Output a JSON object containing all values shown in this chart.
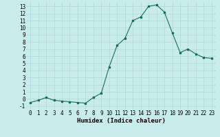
{
  "x": [
    0,
    1,
    2,
    3,
    4,
    5,
    6,
    7,
    8,
    9,
    10,
    11,
    12,
    13,
    14,
    15,
    16,
    17,
    18,
    19,
    20,
    21,
    22,
    23
  ],
  "y": [
    -0.5,
    -0.2,
    0.2,
    -0.2,
    -0.3,
    -0.4,
    -0.5,
    -0.6,
    0.2,
    0.8,
    4.5,
    7.5,
    8.5,
    11.0,
    11.5,
    13.0,
    13.2,
    12.2,
    9.3,
    6.5,
    7.0,
    6.3,
    5.8,
    5.7
  ],
  "xlabel": "Humidex (Indice chaleur)",
  "ylim": [
    -1.5,
    13.5
  ],
  "xlim": [
    -0.5,
    23.5
  ],
  "yticks": [
    -1,
    0,
    1,
    2,
    3,
    4,
    5,
    6,
    7,
    8,
    9,
    10,
    11,
    12,
    13
  ],
  "xticks": [
    0,
    1,
    2,
    3,
    4,
    5,
    6,
    7,
    8,
    9,
    10,
    11,
    12,
    13,
    14,
    15,
    16,
    17,
    18,
    19,
    20,
    21,
    22,
    23
  ],
  "line_color": "#1a6b5a",
  "bg_color": "#c8ecec",
  "grid_color": "#b0d8d8",
  "tick_fontsize": 5.5,
  "label_fontsize": 6.5
}
